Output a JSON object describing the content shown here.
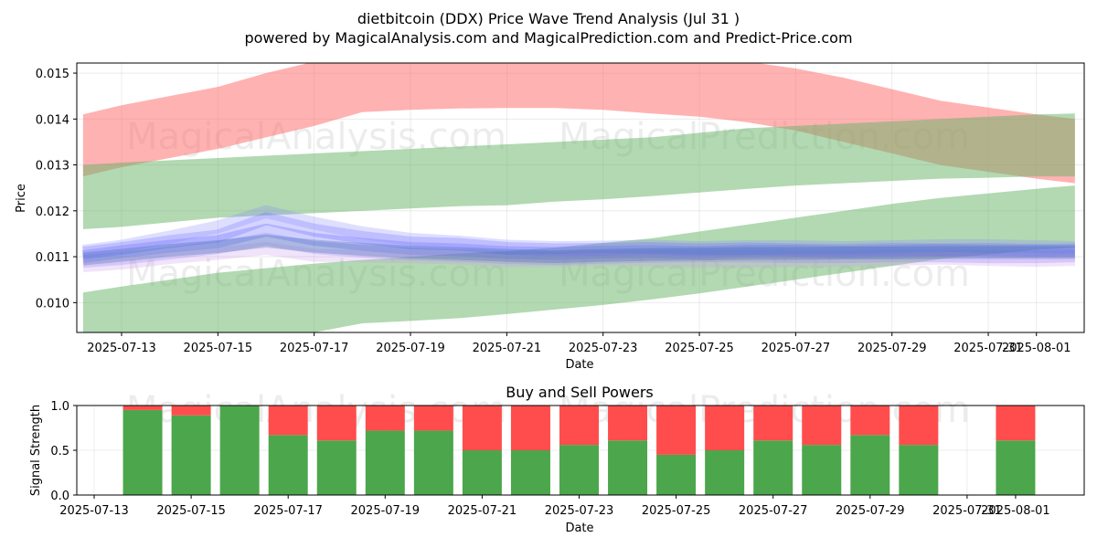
{
  "chart_data": [
    {
      "type": "area",
      "title": "dietbitcoin (DDX) Price Wave Trend Analysis (Jul 31 )",
      "subtitle": "powered by MagicalAnalysis.com and MagicalPrediction.com and Predict-Price.com",
      "xlabel": "Date",
      "ylabel": "Price",
      "ylim": [
        0.00935,
        0.01522
      ],
      "grid": true,
      "x_tick_labels": [
        "2025-07-13",
        "2025-07-15",
        "2025-07-17",
        "2025-07-19",
        "2025-07-21",
        "2025-07-23",
        "2025-07-25",
        "2025-07-27",
        "2025-07-29",
        "2025-07-31",
        "2025-08-01"
      ],
      "y_tick_labels": [
        "0.010",
        "0.011",
        "0.012",
        "0.013",
        "0.014",
        "0.015"
      ],
      "watermarks": [
        "MagicalAnalysis.com",
        "MagicalPrediction.com"
      ],
      "x_days": [
        12.2,
        13.0,
        14.0,
        15.0,
        16.0,
        17.0,
        18.0,
        19.0,
        20.0,
        21.0,
        22.0,
        23.0,
        24.0,
        25.0,
        26.0,
        27.0,
        28.0,
        29.0,
        30.0,
        31.0,
        32.0,
        32.8
      ],
      "bands": [
        {
          "name": "upper-red-band",
          "color": "#ff6666",
          "upper": [
            0.0141,
            0.0143,
            0.0145,
            0.0147,
            0.015,
            0.01525,
            0.01535,
            0.0154,
            0.01545,
            0.01545,
            0.01545,
            0.01545,
            0.0154,
            0.01535,
            0.01525,
            0.0151,
            0.0149,
            0.01465,
            0.0144,
            0.01425,
            0.0141,
            0.014
          ],
          "lower": [
            0.01275,
            0.01295,
            0.01315,
            0.01335,
            0.0136,
            0.01385,
            0.01415,
            0.0142,
            0.01423,
            0.01424,
            0.01424,
            0.0142,
            0.01412,
            0.01405,
            0.01393,
            0.01375,
            0.0135,
            0.01325,
            0.013,
            0.01285,
            0.0127,
            0.0126
          ]
        },
        {
          "name": "upper-green-band",
          "color": "#66b366",
          "upper": [
            0.013,
            0.01305,
            0.0131,
            0.01315,
            0.0132,
            0.01325,
            0.0133,
            0.01335,
            0.0134,
            0.01345,
            0.0135,
            0.01355,
            0.0136,
            0.0137,
            0.0138,
            0.01385,
            0.0139,
            0.01395,
            0.014,
            0.01405,
            0.0141,
            0.01412
          ],
          "lower": [
            0.0116,
            0.01165,
            0.01175,
            0.01185,
            0.0119,
            0.01195,
            0.012,
            0.01205,
            0.0121,
            0.01212,
            0.0122,
            0.01225,
            0.01232,
            0.0124,
            0.01248,
            0.01255,
            0.0126,
            0.01265,
            0.0127,
            0.01272,
            0.01275,
            0.01275
          ]
        },
        {
          "name": "lower-green-band",
          "color": "#66b366",
          "upper": [
            0.01022,
            0.01035,
            0.0105,
            0.01065,
            0.01075,
            0.01085,
            0.01093,
            0.011,
            0.01107,
            0.01112,
            0.0112,
            0.0113,
            0.0114,
            0.01155,
            0.0117,
            0.01185,
            0.012,
            0.01215,
            0.01228,
            0.01238,
            0.01248,
            0.01255
          ],
          "lower": [
            0.00935,
            0.00935,
            0.00935,
            0.00935,
            0.00935,
            0.00935,
            0.00955,
            0.0096,
            0.00966,
            0.00975,
            0.00985,
            0.00995,
            0.01007,
            0.0102,
            0.01035,
            0.0105,
            0.01065,
            0.0108,
            0.01095,
            0.01105,
            0.01115,
            0.0112
          ]
        }
      ],
      "wave_center": [
        0.011,
        0.01108,
        0.01118,
        0.01125,
        0.01138,
        0.01128,
        0.01122,
        0.01118,
        0.01117,
        0.01113,
        0.01112,
        0.01113,
        0.01113,
        0.01112,
        0.01112,
        0.01112,
        0.01112,
        0.01112,
        0.01112,
        0.01112,
        0.01112,
        0.01112
      ],
      "wave_lines": [
        {
          "name": "wave-1",
          "color": "#6666ff",
          "offsets": [
            8e-05,
            0.0001,
            0.00015,
            0.0002,
            0.00045,
            0.0003,
            0.0002,
            0.00012,
            0.0001,
            5e-05,
            3e-05,
            3e-05,
            5e-05,
            3e-05,
            5e-05,
            3e-05,
            2e-05,
            4e-05,
            3e-05,
            4e-05,
            2e-05,
            3e-05
          ]
        },
        {
          "name": "wave-2",
          "color": "#5555ff",
          "offsets": [
            0.0,
            3e-05,
            5e-05,
            8e-05,
            0.0002,
            0.0001,
            5e-05,
            0.0,
            -2e-05,
            -4e-05,
            -5e-05,
            -3e-05,
            -2e-05,
            -3e-05,
            0.0,
            0.0,
            -2e-05,
            0.0,
            2e-05,
            0.0,
            0.0,
            0.0
          ]
        },
        {
          "name": "wave-3",
          "color": "#7777ff",
          "offsets": [
            -0.0001,
            -0.00012,
            -0.0001,
            -5e-05,
            0.0,
            -8e-05,
            -0.0001,
            -0.00012,
            -0.00014,
            -0.00015,
            -0.00016,
            -0.00014,
            -0.00012,
            -0.0001,
            -0.0001,
            -0.00012,
            -0.00012,
            -0.0001,
            -0.0001,
            -0.00012,
            -0.00012,
            -0.0001
          ]
        },
        {
          "name": "wave-4",
          "color": "#cc99ee",
          "offsets": [
            -0.0002,
            -0.00022,
            -0.0002,
            -0.00018,
            -0.0002,
            -0.00025,
            -0.0002,
            -0.00018,
            -0.0002,
            -0.00022,
            -0.0002,
            -0.00018,
            -0.0002,
            -0.00022,
            -0.00022,
            -0.0002,
            -0.0002,
            -0.00018,
            -0.00015,
            -0.00018,
            -0.0002,
            -0.00018
          ]
        },
        {
          "name": "wave-5",
          "color": "#8888ff",
          "offsets": [
            0.00012,
            0.00015,
            0.00025,
            0.0004,
            0.0006,
            0.00045,
            0.0003,
            0.0002,
            0.00015,
            0.0001,
            8e-05,
            8e-05,
            0.0001,
            8e-05,
            0.0001,
            0.0001,
            8e-05,
            0.0001,
            0.00012,
            0.00012,
            0.0001,
            8e-05
          ]
        },
        {
          "name": "wave-6",
          "color": "#336699",
          "offsets": [
            -5e-05,
            -5e-05,
            -4e-05,
            -3e-05,
            -4e-05,
            -5e-05,
            -6e-05,
            -8e-05,
            -0.0001,
            -0.0001,
            -0.00012,
            -0.0001,
            -8e-05,
            -6e-05,
            -5e-05,
            -5e-05,
            -4e-05,
            -4e-05,
            -3e-05,
            -3e-05,
            -3e-05,
            -3e-05
          ]
        }
      ]
    },
    {
      "type": "bar",
      "title": "Buy and Sell Powers",
      "xlabel": "Date",
      "ylabel": "Signal Strength",
      "ylim": [
        0,
        1
      ],
      "grid": true,
      "x_tick_labels": [
        "2025-07-13",
        "2025-07-15",
        "2025-07-17",
        "2025-07-19",
        "2025-07-21",
        "2025-07-23",
        "2025-07-25",
        "2025-07-27",
        "2025-07-29",
        "2025-07-31",
        "2025-08-01"
      ],
      "y_tick_labels": [
        "0.0",
        "0.5",
        "1.0"
      ],
      "watermarks": [
        "MagicalAnalysis.com",
        "MagicalPrediction.com"
      ],
      "x_days": [
        14,
        15,
        16,
        17,
        18,
        19,
        20,
        21,
        22,
        23,
        24,
        25,
        26,
        27,
        28,
        29,
        30,
        31,
        32
      ],
      "series": [
        {
          "name": "Buy",
          "color": "#4ca64c",
          "values": [
            0.95,
            0.89,
            1.0,
            0.67,
            0.61,
            0.72,
            0.72,
            0.5,
            0.5,
            0.56,
            0.61,
            0.45,
            0.5,
            0.61,
            0.56,
            0.67,
            0.56,
            0,
            0.61
          ]
        },
        {
          "name": "Sell",
          "color": "#ff4d4d",
          "values": [
            0.05,
            0.11,
            0.0,
            0.33,
            0.39,
            0.28,
            0.28,
            0.5,
            0.5,
            0.44,
            0.39,
            0.55,
            0.5,
            0.39,
            0.44,
            0.33,
            0.44,
            0,
            0.39
          ]
        }
      ]
    }
  ]
}
